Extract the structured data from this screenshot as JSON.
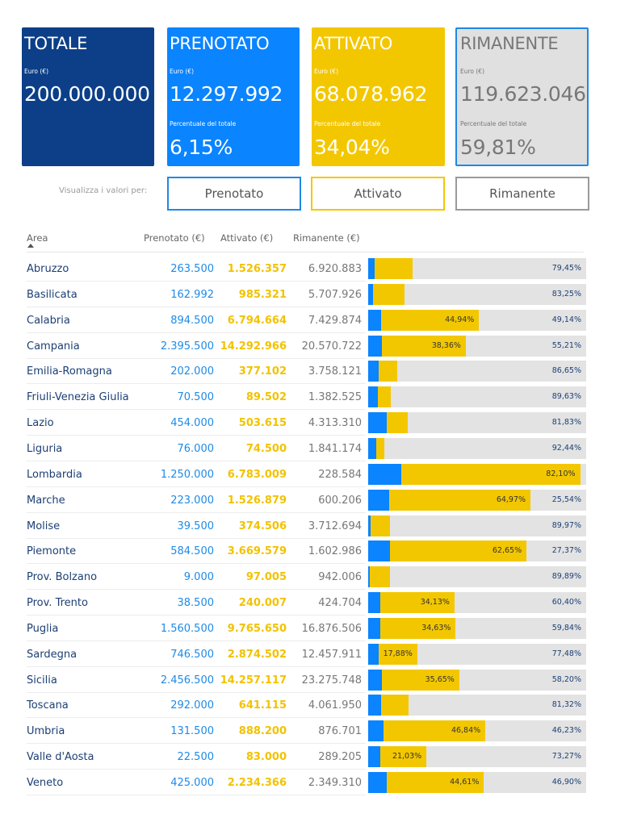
{
  "cards": {
    "totale": {
      "title": "TOTALE",
      "euro_label": "Euro (€)",
      "value": "200.000.000"
    },
    "prenotato": {
      "title": "PRENOTATO",
      "euro_label": "Euro (€)",
      "value": "12.297.992",
      "pct_label": "Percentuale del totale",
      "pct": "6,15%"
    },
    "attivato": {
      "title": "ATTIVATO",
      "euro_label": "Euro (€)",
      "value": "68.078.962",
      "pct_label": "Percentuale del totale",
      "pct": "34,04%"
    },
    "rimanente": {
      "title": "RIMANENTE",
      "euro_label": "Euro (€)",
      "value": "119.623.046",
      "pct_label": "Percentuale del totale",
      "pct": "59,81%"
    }
  },
  "view_selector": {
    "label": "Visualizza i valori per:",
    "buttons": [
      "Prenotato",
      "Attivato",
      "Rimanente"
    ]
  },
  "table": {
    "headers": {
      "area": "Area",
      "prenotato": "Prenotato (€)",
      "attivato": "Attivato (€)",
      "rimanente": "Rimanente (€)"
    },
    "colors": {
      "prenotato": "#0a84ff",
      "attivato": "#f3c700",
      "rimanente": "#e3e3e3"
    },
    "rows": [
      {
        "area": "Abruzzo",
        "prenotato": "263.500",
        "attivato": "1.526.357",
        "rimanente": "6.920.883",
        "pct_pre": 3.03,
        "pct_att": 17.52,
        "pct_rim": 79.45,
        "lbl_att": "",
        "lbl_rim": "79,45%"
      },
      {
        "area": "Basilicata",
        "prenotato": "162.992",
        "attivato": "985.321",
        "rimanente": "5.707.926",
        "pct_pre": 2.38,
        "pct_att": 14.37,
        "pct_rim": 83.25,
        "lbl_att": "",
        "lbl_rim": "83,25%"
      },
      {
        "area": "Calabria",
        "prenotato": "894.500",
        "attivato": "6.794.664",
        "rimanente": "7.429.874",
        "pct_pre": 5.92,
        "pct_att": 44.94,
        "pct_rim": 49.14,
        "lbl_att": "44,94%",
        "lbl_rim": "49,14%"
      },
      {
        "area": "Campania",
        "prenotato": "2.395.500",
        "attivato": "14.292.966",
        "rimanente": "20.570.722",
        "pct_pre": 6.43,
        "pct_att": 38.36,
        "pct_rim": 55.21,
        "lbl_att": "38,36%",
        "lbl_rim": "55,21%"
      },
      {
        "area": "Emilia-Romagna",
        "prenotato": "202.000",
        "attivato": "377.102",
        "rimanente": "3.758.121",
        "pct_pre": 4.66,
        "pct_att": 8.69,
        "pct_rim": 86.65,
        "lbl_att": "",
        "lbl_rim": "86,65%"
      },
      {
        "area": "Friuli-Venezia Giulia",
        "prenotato": "70.500",
        "attivato": "89.502",
        "rimanente": "1.382.525",
        "pct_pre": 4.57,
        "pct_att": 5.8,
        "pct_rim": 89.63,
        "lbl_att": "",
        "lbl_rim": "89,63%"
      },
      {
        "area": "Lazio",
        "prenotato": "454.000",
        "attivato": "503.615",
        "rimanente": "4.313.310",
        "pct_pre": 8.61,
        "pct_att": 9.56,
        "pct_rim": 81.83,
        "lbl_att": "",
        "lbl_rim": "81,83%"
      },
      {
        "area": "Liguria",
        "prenotato": "76.000",
        "attivato": "74.500",
        "rimanente": "1.841.174",
        "pct_pre": 3.82,
        "pct_att": 3.74,
        "pct_rim": 92.44,
        "lbl_att": "",
        "lbl_rim": "92,44%"
      },
      {
        "area": "Lombardia",
        "prenotato": "1.250.000",
        "attivato": "6.783.009",
        "rimanente": "228.584",
        "pct_pre": 15.13,
        "pct_att": 82.1,
        "pct_rim": 2.77,
        "lbl_att": "82,10%",
        "lbl_rim": ""
      },
      {
        "area": "Marche",
        "prenotato": "223.000",
        "attivato": "1.526.879",
        "rimanente": "600.206",
        "pct_pre": 9.49,
        "pct_att": 64.97,
        "pct_rim": 25.54,
        "lbl_att": "64,97%",
        "lbl_rim": "25,54%"
      },
      {
        "area": "Molise",
        "prenotato": "39.500",
        "attivato": "374.506",
        "rimanente": "3.712.694",
        "pct_pre": 0.96,
        "pct_att": 9.07,
        "pct_rim": 89.97,
        "lbl_att": "",
        "lbl_rim": "89,97%"
      },
      {
        "area": "Piemonte",
        "prenotato": "584.500",
        "attivato": "3.669.579",
        "rimanente": "1.602.986",
        "pct_pre": 9.98,
        "pct_att": 62.65,
        "pct_rim": 27.37,
        "lbl_att": "62,65%",
        "lbl_rim": "27,37%"
      },
      {
        "area": "Prov. Bolzano",
        "prenotato": "9.000",
        "attivato": "97.005",
        "rimanente": "942.006",
        "pct_pre": 0.86,
        "pct_att": 9.25,
        "pct_rim": 89.89,
        "lbl_att": "",
        "lbl_rim": "89,89%"
      },
      {
        "area": "Prov. Trento",
        "prenotato": "38.500",
        "attivato": "240.007",
        "rimanente": "424.704",
        "pct_pre": 5.47,
        "pct_att": 34.13,
        "pct_rim": 60.4,
        "lbl_att": "34,13%",
        "lbl_rim": "60,40%"
      },
      {
        "area": "Puglia",
        "prenotato": "1.560.500",
        "attivato": "9.765.650",
        "rimanente": "16.876.506",
        "pct_pre": 5.53,
        "pct_att": 34.63,
        "pct_rim": 59.84,
        "lbl_att": "34,63%",
        "lbl_rim": "59,84%"
      },
      {
        "area": "Sardegna",
        "prenotato": "746.500",
        "attivato": "2.874.502",
        "rimanente": "12.457.911",
        "pct_pre": 4.64,
        "pct_att": 17.88,
        "pct_rim": 77.48,
        "lbl_att": "17,88%",
        "lbl_rim": "77,48%"
      },
      {
        "area": "Sicilia",
        "prenotato": "2.456.500",
        "attivato": "14.257.117",
        "rimanente": "23.275.748",
        "pct_pre": 6.14,
        "pct_att": 35.65,
        "pct_rim": 58.2,
        "lbl_att": "35,65%",
        "lbl_rim": "58,20%"
      },
      {
        "area": "Toscana",
        "prenotato": "292.000",
        "attivato": "641.115",
        "rimanente": "4.061.950",
        "pct_pre": 5.85,
        "pct_att": 12.84,
        "pct_rim": 81.32,
        "lbl_att": "",
        "lbl_rim": "81,32%"
      },
      {
        "area": "Umbria",
        "prenotato": "131.500",
        "attivato": "888.200",
        "rimanente": "876.701",
        "pct_pre": 6.93,
        "pct_att": 46.84,
        "pct_rim": 46.23,
        "lbl_att": "46,84%",
        "lbl_rim": "46,23%"
      },
      {
        "area": "Valle d'Aosta",
        "prenotato": "22.500",
        "attivato": "83.000",
        "rimanente": "289.205",
        "pct_pre": 5.7,
        "pct_att": 21.03,
        "pct_rim": 73.27,
        "lbl_att": "21,03%",
        "lbl_rim": "73,27%"
      },
      {
        "area": "Veneto",
        "prenotato": "425.000",
        "attivato": "2.234.366",
        "rimanente": "2.349.310",
        "pct_pre": 8.49,
        "pct_att": 44.61,
        "pct_rim": 46.9,
        "lbl_att": "44,61%",
        "lbl_rim": "46,90%"
      }
    ]
  }
}
